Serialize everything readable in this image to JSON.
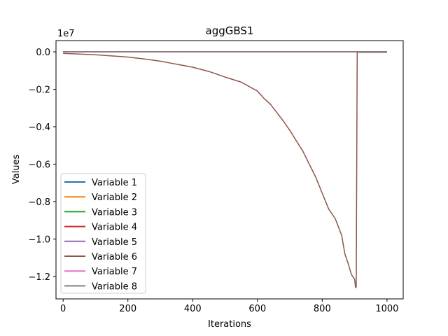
{
  "chart_data": {
    "type": "line",
    "title": "aggGBS1",
    "xlabel": "Iterations",
    "ylabel": "Values",
    "y_offset_label": "1e7",
    "xlim": [
      -22,
      1050
    ],
    "ylim": [
      -13200000,
      600000
    ],
    "xticks": [
      0,
      200,
      400,
      600,
      800,
      1000
    ],
    "xtick_labels": [
      "0",
      "200",
      "400",
      "600",
      "800",
      "1000"
    ],
    "yticks": [
      0,
      -2000000,
      -4000000,
      -6000000,
      -8000000,
      -10000000,
      -12000000
    ],
    "ytick_labels": [
      "0.0",
      "−0.2",
      "−0.4",
      "−0.6",
      "−0.8",
      "−1.0",
      "−1.2"
    ],
    "grid": false,
    "legend_position": "lower-left",
    "series": [
      {
        "name": "Variable 1",
        "color": "#1f77b4",
        "x": [
          0,
          1000
        ],
        "y": [
          0,
          0
        ]
      },
      {
        "name": "Variable 2",
        "color": "#ff7f0e",
        "x": [
          0,
          1000
        ],
        "y": [
          0,
          0
        ]
      },
      {
        "name": "Variable 3",
        "color": "#2ca02c",
        "x": [
          0,
          1000
        ],
        "y": [
          0,
          0
        ]
      },
      {
        "name": "Variable 4",
        "color": "#d62728",
        "x": [
          0,
          1000
        ],
        "y": [
          0,
          0
        ]
      },
      {
        "name": "Variable 5",
        "color": "#9467bd",
        "x": [
          0,
          1000
        ],
        "y": [
          0,
          0
        ]
      },
      {
        "name": "Variable 6",
        "color": "#8c564b",
        "x": [
          0,
          50,
          100,
          150,
          200,
          250,
          300,
          350,
          400,
          450,
          500,
          550,
          600,
          620,
          640,
          660,
          680,
          700,
          720,
          740,
          760,
          780,
          800,
          820,
          840,
          860,
          870,
          880,
          890,
          900,
          903,
          905,
          908,
          910,
          1000
        ],
        "y": [
          -80000,
          -120000,
          -160000,
          -220000,
          -280000,
          -380000,
          -500000,
          -660000,
          -820000,
          -1050000,
          -1350000,
          -1620000,
          -2100000,
          -2480000,
          -2800000,
          -3250000,
          -3700000,
          -4200000,
          -4750000,
          -5300000,
          -6000000,
          -6700000,
          -7550000,
          -8400000,
          -8900000,
          -9800000,
          -10800000,
          -11300000,
          -11900000,
          -12150000,
          -12600000,
          -12550000,
          -30000,
          -30000,
          -30000
        ]
      },
      {
        "name": "Variable 7",
        "color": "#e377c2",
        "x": [
          0,
          1000
        ],
        "y": [
          0,
          0
        ]
      },
      {
        "name": "Variable 8",
        "color": "#7f7f7f",
        "x": [
          0,
          1000
        ],
        "y": [
          0,
          0
        ]
      }
    ]
  }
}
